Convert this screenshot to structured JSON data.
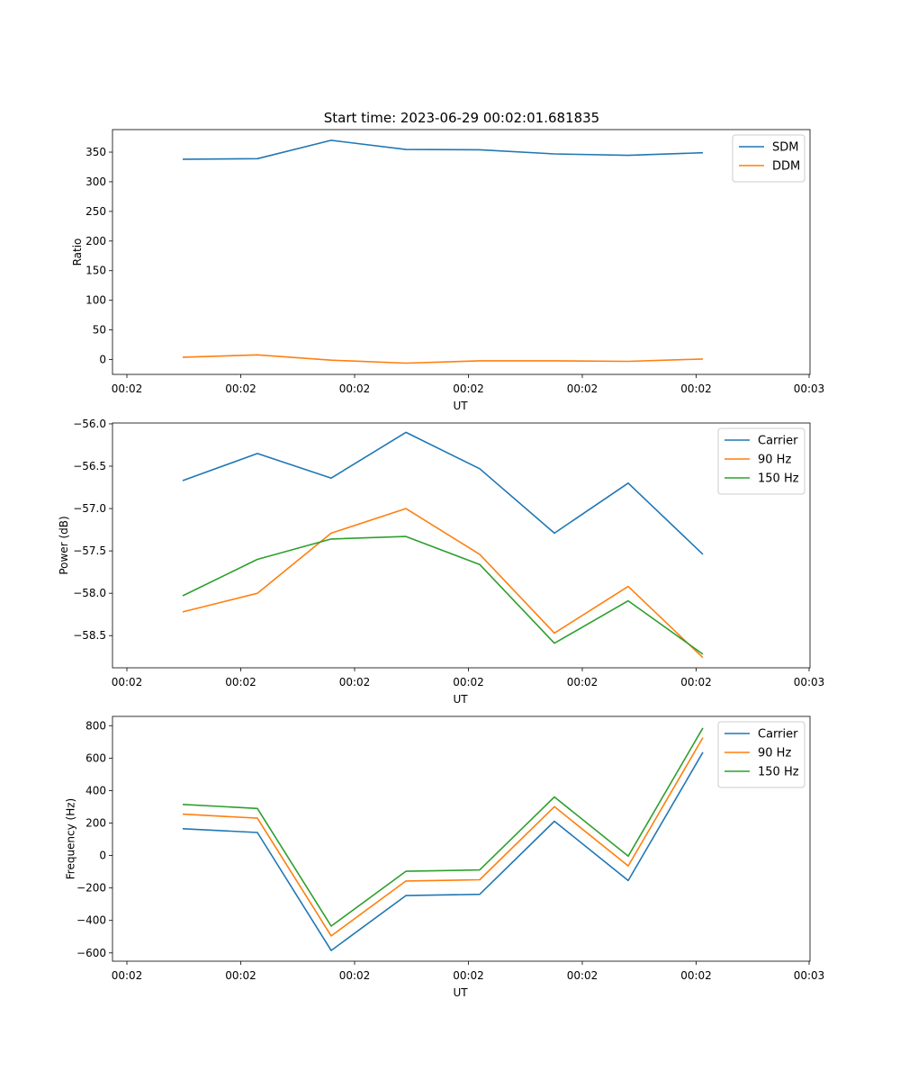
{
  "title": "Start time: 2023-06-29 00:02:01.681835",
  "chart_data": [
    {
      "type": "line",
      "title": "Start time: 2023-06-29 00:02:01.681835",
      "xlabel": "UT",
      "ylabel": "Ratio",
      "x_ticks": [
        "00:02",
        "00:02",
        "00:02",
        "00:02",
        "00:02",
        "00:02",
        "00:02",
        "00:03"
      ],
      "y_ticks": [
        0,
        50,
        100,
        150,
        200,
        250,
        300,
        350
      ],
      "ylim": [
        -25,
        388
      ],
      "legend": "top-right",
      "series": [
        {
          "name": "SDM",
          "color": "#1f77b4",
          "values": [
            338,
            339,
            370,
            354.5,
            354,
            347,
            344.5,
            349
          ]
        },
        {
          "name": "DDM",
          "color": "#ff7f0e",
          "values": [
            4,
            8,
            -1,
            -6,
            -2,
            -2,
            -3,
            1
          ]
        }
      ]
    },
    {
      "type": "line",
      "title": "",
      "xlabel": "UT",
      "ylabel": "Power (dB)",
      "x_ticks": [
        "00:02",
        "00:02",
        "00:02",
        "00:02",
        "00:02",
        "00:02",
        "00:02",
        "00:03"
      ],
      "y_ticks": [
        -58.5,
        -58.0,
        -57.5,
        -57.0,
        -56.5,
        -56.0
      ],
      "y_tick_labels": [
        "−58.5",
        "−58.0",
        "−57.5",
        "−57.0",
        "−56.5",
        "−56.0"
      ],
      "ylim": [
        -58.88,
        -55.99
      ],
      "legend": "top-right",
      "series": [
        {
          "name": "Carrier",
          "color": "#1f77b4",
          "values": [
            -56.67,
            -56.35,
            -56.64,
            -56.1,
            -56.53,
            -57.29,
            -56.7,
            -57.54
          ]
        },
        {
          "name": "90 Hz",
          "color": "#ff7f0e",
          "values": [
            -58.22,
            -58.0,
            -57.29,
            -57.0,
            -57.54,
            -58.47,
            -57.92,
            -58.76
          ]
        },
        {
          "name": "150 Hz",
          "color": "#2ca02c",
          "values": [
            -58.03,
            -57.6,
            -57.36,
            -57.33,
            -57.66,
            -58.59,
            -58.09,
            -58.72
          ]
        }
      ]
    },
    {
      "type": "line",
      "title": "",
      "xlabel": "UT",
      "ylabel": "Frequency (Hz)",
      "x_ticks": [
        "00:02",
        "00:02",
        "00:02",
        "00:02",
        "00:02",
        "00:02",
        "00:02",
        "00:03"
      ],
      "y_ticks": [
        -600,
        -400,
        -200,
        0,
        200,
        400,
        600,
        800
      ],
      "y_tick_labels": [
        "−600",
        "−400",
        "−200",
        "0",
        "200",
        "400",
        "600",
        "800"
      ],
      "ylim": [
        -651,
        857
      ],
      "legend": "top-right",
      "series": [
        {
          "name": "Carrier",
          "color": "#1f77b4",
          "values": [
            165,
            142,
            -585,
            -247,
            -239,
            211,
            -154,
            636
          ]
        },
        {
          "name": "90 Hz",
          "color": "#ff7f0e",
          "values": [
            255,
            230,
            -495,
            -157,
            -149,
            301,
            -64,
            726
          ]
        },
        {
          "name": "150 Hz",
          "color": "#2ca02c",
          "values": [
            315,
            290,
            -435,
            -97,
            -89,
            361,
            -4,
            786
          ]
        }
      ]
    }
  ]
}
